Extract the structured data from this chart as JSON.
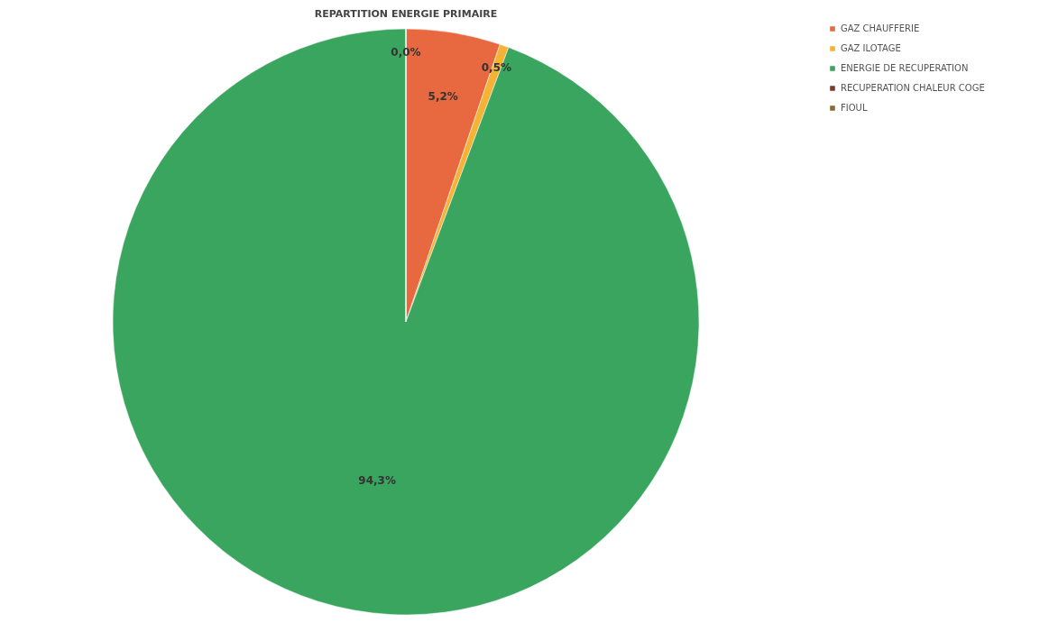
{
  "chart_data": {
    "type": "pie",
    "title": "REPARTITION ENERGIE PRIMAIRE",
    "categories": [
      "GAZ CHAUFFERIE",
      "GAZ ILOTAGE",
      "ENERGIE DE RECUPERATION",
      "RECUPERATION CHALEUR COGE",
      "FIOUL"
    ],
    "values": [
      5.2,
      0.5,
      94.3,
      0.0,
      0.0
    ],
    "value_labels": [
      "5,2%",
      "0,5%",
      "94,3%",
      "0,0%",
      null
    ],
    "colors": [
      "#e8683f",
      "#f5b335",
      "#3aa55e",
      "#7a3b2a",
      "#8c6b30"
    ],
    "legend": "right"
  }
}
